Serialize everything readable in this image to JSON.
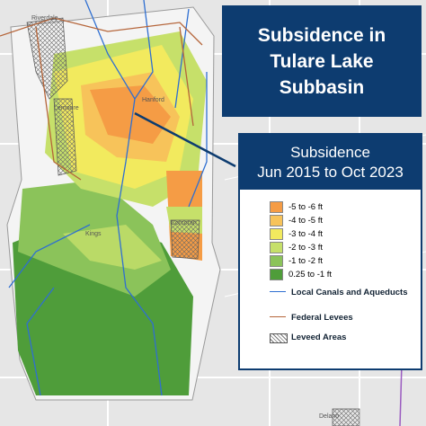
{
  "title": "Subsidence in Tulare Lake Subbasin",
  "legend": {
    "title": "Subsidence",
    "subtitle": "Jun 2015 to Oct 2023",
    "items": [
      {
        "label": "-5 to -6 ft",
        "color": "#f59c45"
      },
      {
        "label": "-4 to -5 ft",
        "color": "#f7c35a"
      },
      {
        "label": "-3 to -4 ft",
        "color": "#f2ea5e"
      },
      {
        "label": "-2 to -3 ft",
        "color": "#c6e06a"
      },
      {
        "label": "-1 to -2 ft",
        "color": "#8bc35a"
      },
      {
        "label": "0.25 to -1 ft",
        "color": "#4f9d3a"
      }
    ],
    "lines": [
      {
        "label": "Local Canals and Aqueducts",
        "color": "#2f6fd1"
      },
      {
        "label": "Federal Levees",
        "color": "#b5653a"
      },
      {
        "label": "Leveed Areas"
      }
    ]
  },
  "places": [
    "Riverdale",
    "Lemoore",
    "Hanford",
    "Kings",
    "Corcoran",
    "Delano"
  ]
}
